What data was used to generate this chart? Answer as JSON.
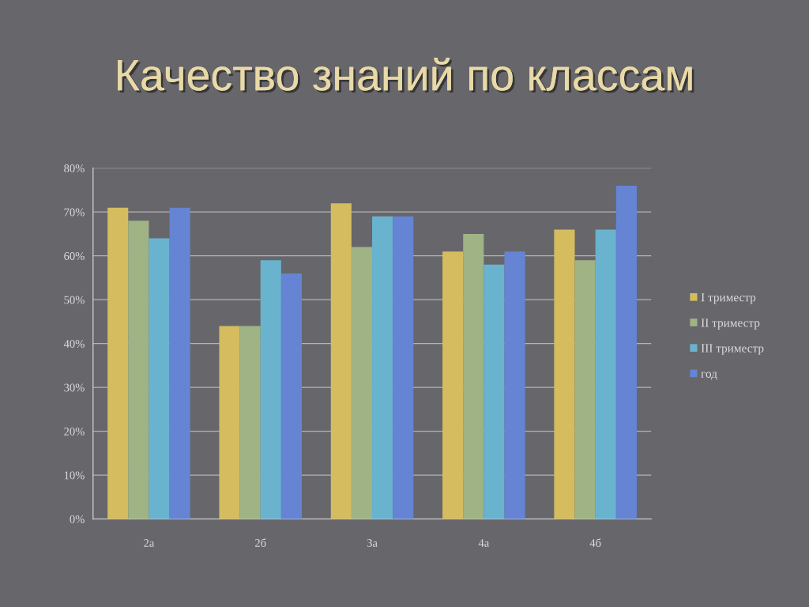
{
  "chart_data": {
    "type": "bar",
    "title": "Качество знаний по классам",
    "categories": [
      "2а",
      "2б",
      "3а",
      "4а",
      "4б"
    ],
    "series": [
      {
        "name": "I триместр",
        "color": "#d4bc5f",
        "values": [
          71,
          44,
          72,
          61,
          66
        ]
      },
      {
        "name": "II триместр",
        "color": "#9fb385",
        "values": [
          68,
          44,
          62,
          65,
          59
        ]
      },
      {
        "name": "III триместр",
        "color": "#6ab3cf",
        "values": [
          64,
          59,
          69,
          58,
          66
        ]
      },
      {
        "name": "год",
        "color": "#6584d4",
        "values": [
          71,
          56,
          69,
          61,
          76
        ]
      }
    ],
    "ylim": [
      0,
      80
    ],
    "yticks": [
      {
        "value": 0,
        "label": "0%"
      },
      {
        "value": 10,
        "label": "10%"
      },
      {
        "value": 20,
        "label": "20%"
      },
      {
        "value": 30,
        "label": "30%"
      },
      {
        "value": 40,
        "label": "40%"
      },
      {
        "value": 50,
        "label": "50%"
      },
      {
        "value": 60,
        "label": "60%"
      },
      {
        "value": 70,
        "label": "70%"
      },
      {
        "value": 80,
        "label": "80%"
      }
    ],
    "grid": "y",
    "legend": "right"
  }
}
